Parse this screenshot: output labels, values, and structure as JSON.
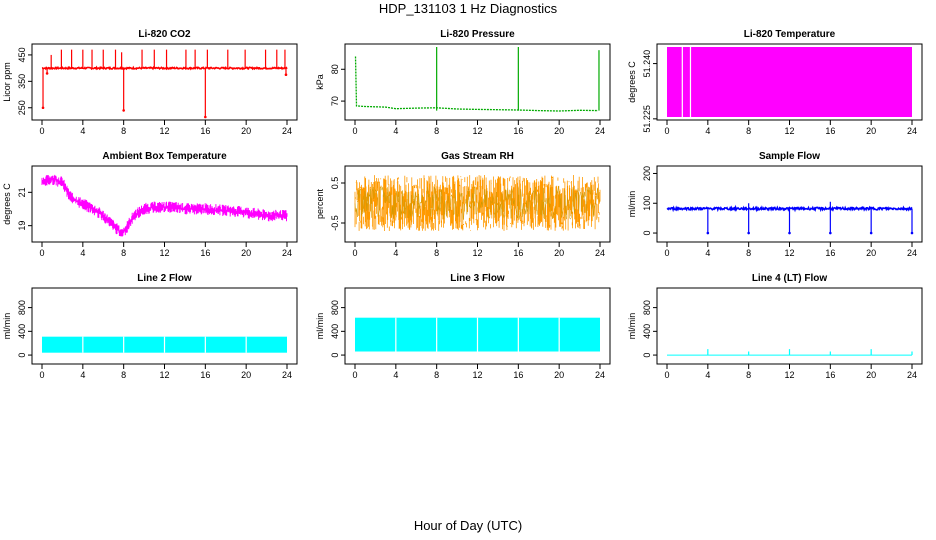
{
  "page": {
    "title": "HDP_131103  1 Hz Diagnostics",
    "xlabel": "Hour of Day (UTC)"
  },
  "chart_data": [
    {
      "type": "line",
      "title": "Li-820 CO2",
      "ylabel": "Licor ppm",
      "color": "#ff0000",
      "xlim": [
        0,
        24
      ],
      "xticks": [
        0,
        4,
        8,
        12,
        16,
        20,
        24
      ],
      "ylim": [
        215,
        480
      ],
      "yticks": [
        250,
        350,
        450
      ],
      "baseline": 400,
      "noise": 3,
      "spikes_up": [
        {
          "x": 0.9,
          "y": 450
        },
        {
          "x": 1.9,
          "y": 470
        },
        {
          "x": 2.9,
          "y": 470
        },
        {
          "x": 4.0,
          "y": 470
        },
        {
          "x": 4.9,
          "y": 470
        },
        {
          "x": 6.0,
          "y": 470
        },
        {
          "x": 7.2,
          "y": 470
        },
        {
          "x": 7.8,
          "y": 460
        },
        {
          "x": 9.8,
          "y": 470
        },
        {
          "x": 11.0,
          "y": 470
        },
        {
          "x": 12.2,
          "y": 470
        },
        {
          "x": 14.1,
          "y": 470
        },
        {
          "x": 15.0,
          "y": 470
        },
        {
          "x": 16.2,
          "y": 470
        },
        {
          "x": 18.2,
          "y": 470
        },
        {
          "x": 19.9,
          "y": 470
        },
        {
          "x": 21.9,
          "y": 470
        },
        {
          "x": 23.0,
          "y": 470
        },
        {
          "x": 23.8,
          "y": 470
        }
      ],
      "spikes_down": [
        {
          "x": 0.1,
          "y": 250
        },
        {
          "x": 0.5,
          "y": 380
        },
        {
          "x": 8.0,
          "y": 240
        },
        {
          "x": 16.0,
          "y": 215
        },
        {
          "x": 23.9,
          "y": 375
        }
      ]
    },
    {
      "type": "line",
      "title": "Li-820 Pressure",
      "ylabel": "kPa",
      "color": "#00aa00",
      "xlim": [
        0,
        24
      ],
      "xticks": [
        0,
        4,
        8,
        12,
        16,
        20,
        24
      ],
      "ylim": [
        65,
        87
      ],
      "yticks": [
        70,
        80
      ],
      "series": [
        {
          "x": [
            0.05,
            0.15,
            1,
            3,
            4,
            6,
            8,
            10,
            12,
            14,
            16,
            18,
            20,
            22,
            23.8
          ],
          "y": [
            84,
            68.5,
            68.3,
            68.1,
            67.6,
            67.8,
            67.9,
            67.5,
            67.4,
            67.3,
            67.2,
            67.0,
            66.9,
            67.1,
            67.0
          ]
        }
      ],
      "spikes_up": [
        {
          "x": 8.0,
          "y": 87
        },
        {
          "x": 16.0,
          "y": 87
        },
        {
          "x": 23.9,
          "y": 86
        }
      ]
    },
    {
      "type": "area",
      "title": "Li-820 Temperature",
      "ylabel": "degrees C",
      "color": "#ff00ff",
      "xlim": [
        0,
        24
      ],
      "xticks": [
        0,
        4,
        8,
        12,
        16,
        20,
        24
      ],
      "ylim": [
        51.2255,
        51.2445
      ],
      "yticks": [
        51.225,
        51.24
      ],
      "yticklabels": [
        "51.225",
        "51.240"
      ],
      "band": [
        51.2255,
        51.2445
      ],
      "gaps": [
        1.5,
        2.3
      ]
    },
    {
      "type": "line",
      "title": "Ambient Box Temperature",
      "ylabel": "degrees C",
      "color": "#ff00ff",
      "xlim": [
        0,
        24
      ],
      "xticks": [
        0,
        4,
        8,
        12,
        16,
        20,
        24
      ],
      "ylim": [
        18.2,
        22.4
      ],
      "yticks": [
        19,
        21
      ],
      "series": [
        {
          "x": [
            0,
            1,
            2,
            2.5,
            3,
            4,
            5,
            6,
            7,
            7.5,
            7.8,
            8.2,
            9,
            10,
            11,
            12,
            13,
            14,
            16,
            18,
            20,
            22,
            24
          ],
          "y": [
            21.6,
            21.8,
            21.6,
            21.0,
            20.6,
            20.3,
            20.0,
            19.6,
            19.0,
            18.7,
            18.5,
            18.8,
            19.6,
            20.0,
            20.1,
            20.1,
            20.1,
            20.0,
            20.0,
            19.9,
            19.8,
            19.6,
            19.6
          ]
        }
      ],
      "noise": 0.35
    },
    {
      "type": "line",
      "title": "Gas Stream RH",
      "ylabel": "percent",
      "color": "#ff9900",
      "color2": "#cc9900",
      "xlim": [
        0,
        24
      ],
      "xticks": [
        0,
        4,
        8,
        12,
        16,
        20,
        24
      ],
      "ylim": [
        -0.9,
        0.85
      ],
      "yticks": [
        -0.5,
        0.5
      ],
      "band": [
        -0.7,
        0.7
      ]
    },
    {
      "type": "line",
      "title": "Sample Flow",
      "ylabel": "ml/min",
      "color": "#0000ff",
      "xlim": [
        0,
        24
      ],
      "xticks": [
        0,
        4,
        8,
        12,
        16,
        20,
        24
      ],
      "ylim": [
        -20,
        215
      ],
      "yticks": [
        0,
        100,
        200
      ],
      "baseline": 82,
      "noise": 4,
      "spikes_down": [
        {
          "x": 4.0,
          "y": 0
        },
        {
          "x": 8.0,
          "y": 0
        },
        {
          "x": 12.0,
          "y": 0
        },
        {
          "x": 16.0,
          "y": 0
        },
        {
          "x": 20.0,
          "y": 0
        },
        {
          "x": 24.0,
          "y": 0
        }
      ],
      "spikes_up": [
        {
          "x": 8.0,
          "y": 100
        },
        {
          "x": 16.0,
          "y": 105
        }
      ]
    },
    {
      "type": "area",
      "title": "Line 2 Flow",
      "ylabel": "ml/min",
      "color": "#00ffff",
      "xlim": [
        0,
        24
      ],
      "xticks": [
        0,
        4,
        8,
        12,
        16,
        20,
        24
      ],
      "ylim": [
        -100,
        1080
      ],
      "yticks": [
        0,
        400,
        800
      ],
      "band": [
        40,
        310
      ],
      "gaps": [
        4.0,
        8.0,
        12.0,
        16.0,
        20.0
      ]
    },
    {
      "type": "area",
      "title": "Line 3 Flow",
      "ylabel": "ml/min",
      "color": "#00ffff",
      "xlim": [
        0,
        24
      ],
      "xticks": [
        0,
        4,
        8,
        12,
        16,
        20,
        24
      ],
      "ylim": [
        -100,
        1080
      ],
      "yticks": [
        0,
        400,
        800
      ],
      "band": [
        60,
        630
      ],
      "gaps": [
        4.0,
        8.0,
        12.0,
        16.0,
        20.0
      ]
    },
    {
      "type": "line",
      "title": "Line 4 (LT) Flow",
      "ylabel": "ml/min",
      "color": "#00ffff",
      "xlim": [
        0,
        24
      ],
      "xticks": [
        0,
        4,
        8,
        12,
        16,
        20,
        24
      ],
      "ylim": [
        -100,
        1080
      ],
      "yticks": [
        0,
        400,
        800
      ],
      "baseline": 0,
      "noise": 0,
      "spikes_up": [
        {
          "x": 4.0,
          "y": 100
        },
        {
          "x": 8.0,
          "y": 60
        },
        {
          "x": 12.0,
          "y": 100
        },
        {
          "x": 16.0,
          "y": 60
        },
        {
          "x": 20.0,
          "y": 100
        },
        {
          "x": 24.0,
          "y": 60
        }
      ]
    }
  ]
}
